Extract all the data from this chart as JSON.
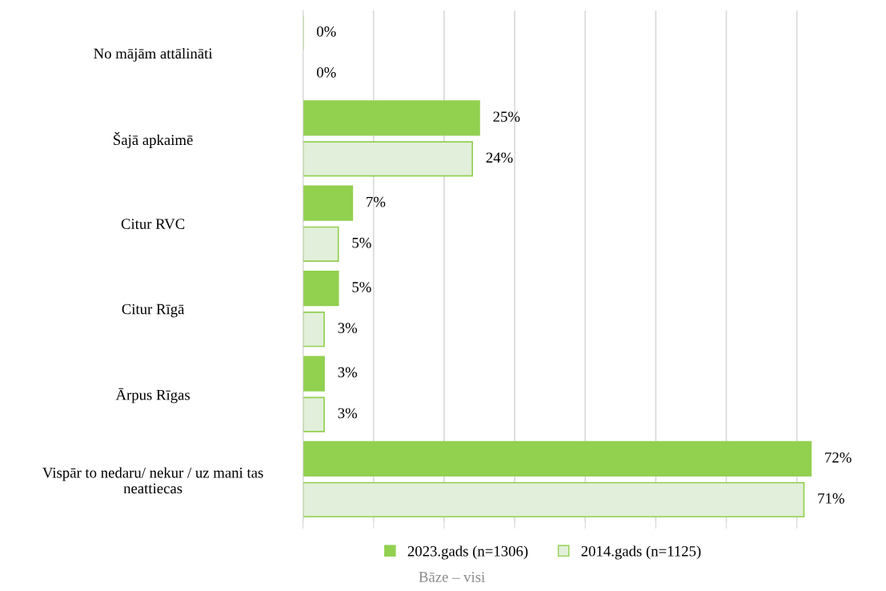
{
  "chart_data": {
    "type": "bar",
    "orientation": "horizontal",
    "categories": [
      "No mājām attālināti",
      "Šajā apkaimē",
      "Citur RVC",
      "Citur Rīgā",
      "Ārpus Rīgas",
      "Vispār to nedaru/ nekur / uz mani tas\nneattiecas"
    ],
    "series": [
      {
        "name": "2023.gads (n=1306)",
        "color": "#92d050",
        "values": [
          0,
          25,
          7,
          5,
          3,
          72
        ],
        "value_labels": [
          "0%",
          "25%",
          "7%",
          "5%",
          "3%",
          "72%"
        ]
      },
      {
        "name": "2014.gads (n=1125)",
        "color": "#e2efda",
        "values": [
          0,
          24,
          5,
          3,
          3,
          71
        ],
        "value_labels": [
          "0%",
          "24%",
          "5%",
          "3%",
          "3%",
          "71%"
        ]
      }
    ],
    "tick_labels": "y",
    "grid": "x",
    "legend": "bottom",
    "annotations": [
      "Bāze – visi"
    ]
  }
}
